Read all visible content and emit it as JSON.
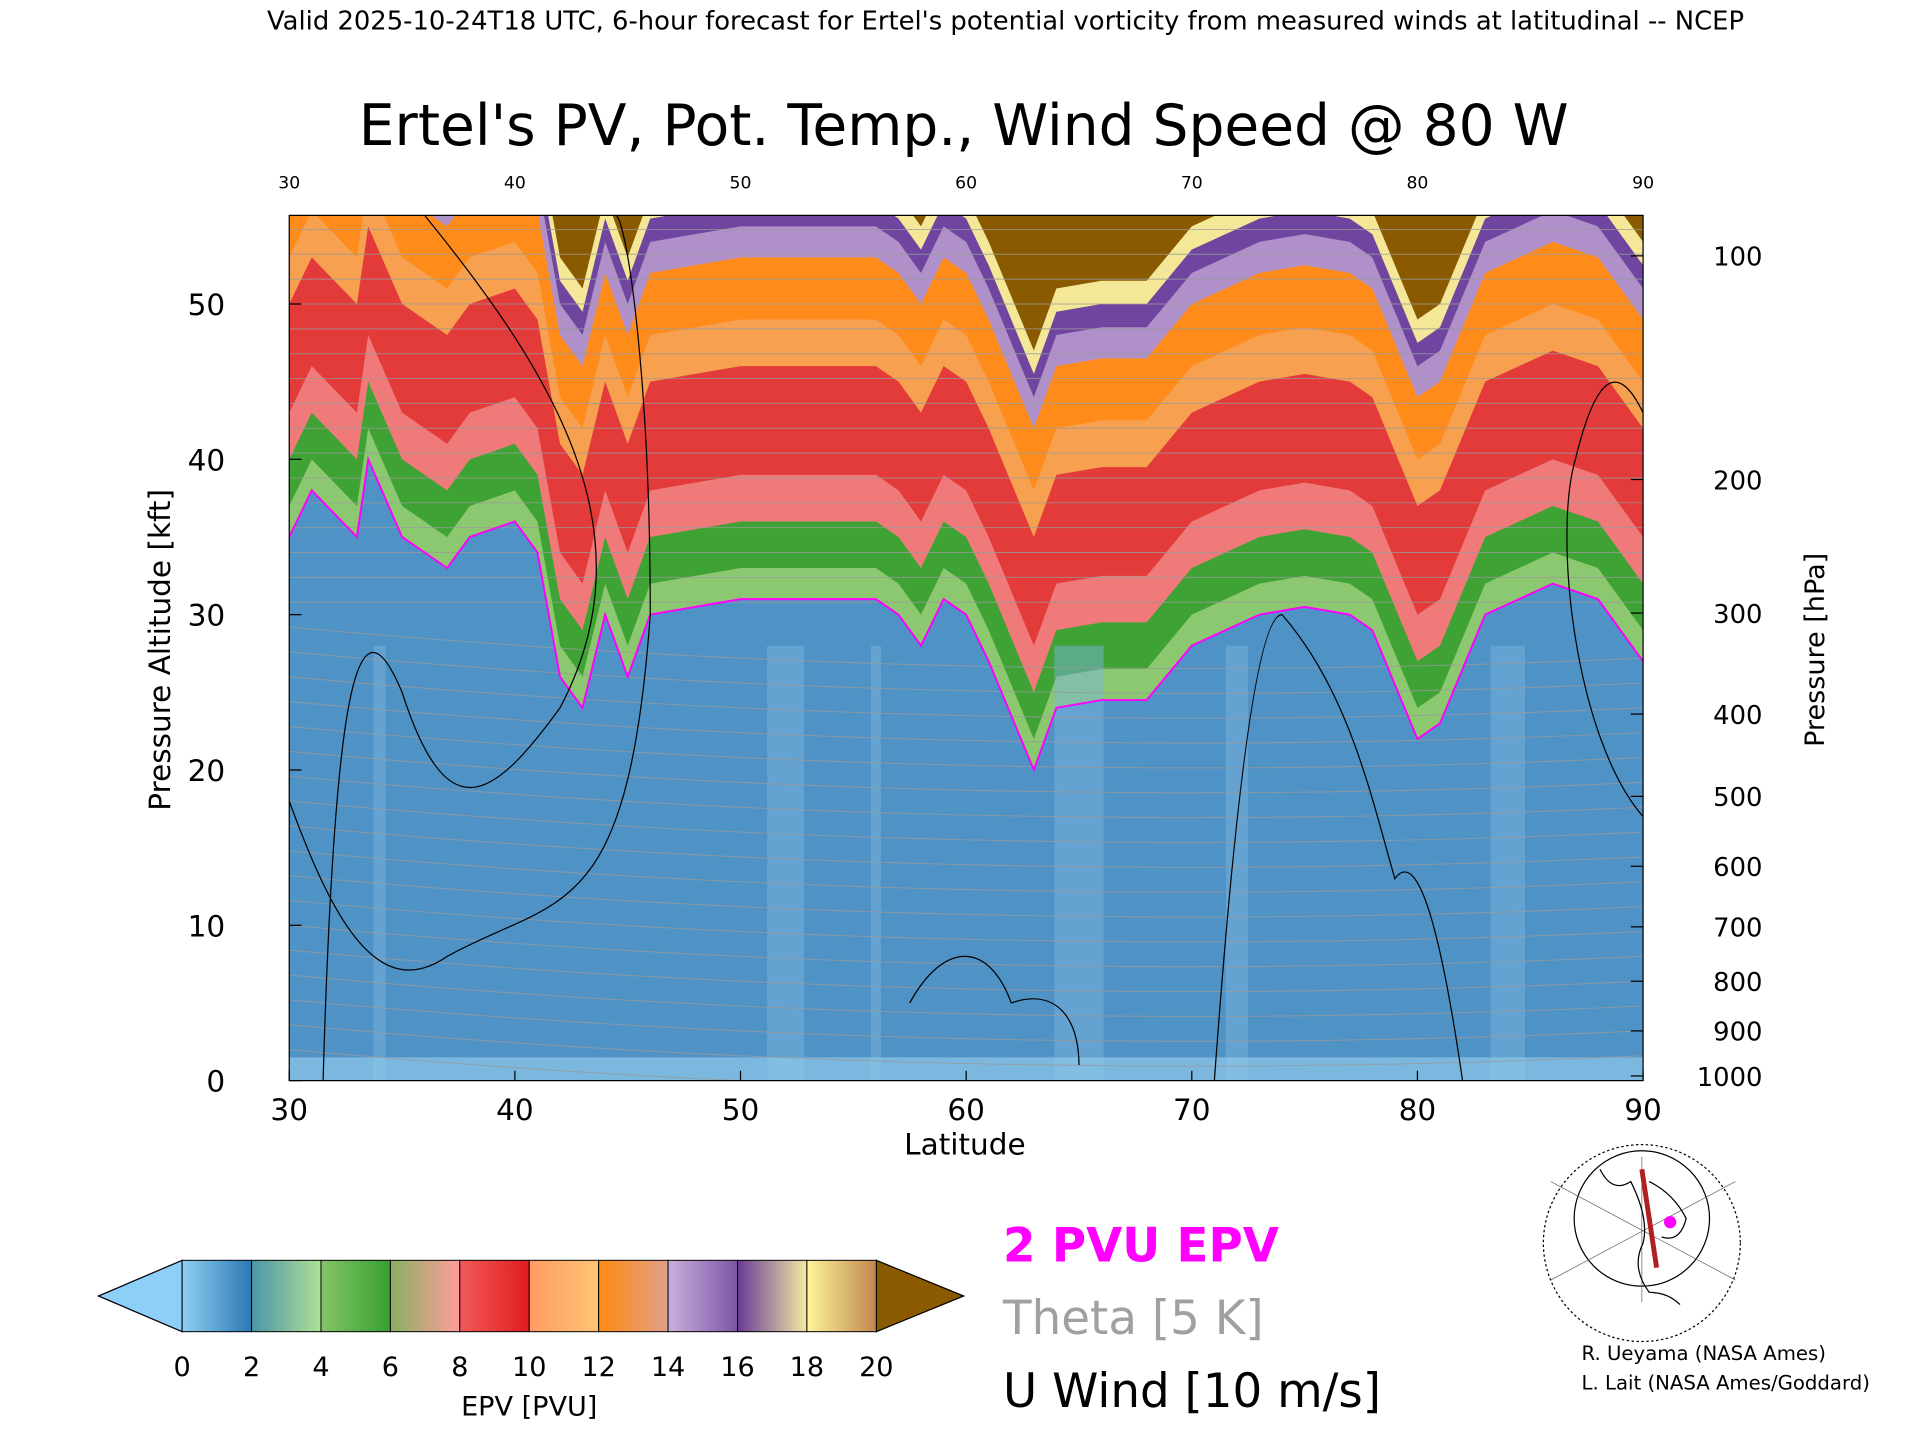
{
  "header": {
    "valid_line": "Valid 2025-10-24T18 UTC, 6-hour forecast for Ertel's potential vorticity from measured winds at latitudinal -- NCEP"
  },
  "chart_data": {
    "type": "heatmap",
    "title": "Ertel's PV, Pot. Temp., Wind Speed @ 80 W",
    "xlabel": "Latitude",
    "ylabel": "Pressure Altitude [kft]",
    "y2label": "Pressure [hPa]",
    "xlim": [
      30,
      90
    ],
    "ylim": [
      0,
      56
    ],
    "x_ticks": [
      "30",
      "40",
      "50",
      "60",
      "70",
      "80",
      "90"
    ],
    "x_tick_values": [
      30,
      40,
      50,
      60,
      70,
      80,
      90
    ],
    "y_ticks": [
      "0",
      "10",
      "20",
      "30",
      "40",
      "50"
    ],
    "y_tick_values": [
      0,
      10,
      20,
      30,
      40,
      50
    ],
    "pressure_ticks": [
      {
        "label": "100",
        "kft": 53.1
      },
      {
        "label": "200",
        "kft": 38.7
      },
      {
        "label": "300",
        "kft": 30.1
      },
      {
        "label": "400",
        "kft": 23.6
      },
      {
        "label": "500",
        "kft": 18.3
      },
      {
        "label": "600",
        "kft": 13.8
      },
      {
        "label": "700",
        "kft": 9.9
      },
      {
        "label": "800",
        "kft": 6.4
      },
      {
        "label": "900",
        "kft": 3.2
      },
      {
        "label": "1000",
        "kft": 0.3
      }
    ],
    "tropopause_2pvu": {
      "lat": [
        30,
        31,
        33,
        33.5,
        35,
        37,
        38,
        40,
        41,
        42,
        43,
        44,
        45,
        46,
        50,
        55,
        56,
        57,
        58,
        59,
        60,
        61,
        63,
        64,
        66,
        68,
        70,
        73,
        75,
        77,
        78,
        80,
        81,
        83,
        86,
        88,
        90
      ],
      "kft": [
        35,
        38,
        35,
        40,
        35,
        33,
        35,
        36,
        34,
        26,
        24,
        30,
        26,
        30,
        31,
        31,
        31,
        30,
        28,
        31,
        30,
        27,
        20,
        24,
        24.5,
        24.5,
        28,
        30,
        30.5,
        30,
        29,
        22,
        23,
        30,
        32,
        31,
        27
      ]
    },
    "colorbar": {
      "label": "EPV [PVU]",
      "ticks": [
        "0",
        "2",
        "4",
        "6",
        "8",
        "10",
        "12",
        "14",
        "16",
        "18",
        "20"
      ],
      "segments": [
        [
          "#8fd0f2",
          "#2b78b4"
        ],
        [
          "#4c95a8",
          "#aee096"
        ],
        [
          "#86c46a",
          "#37a02f"
        ],
        [
          "#8ab062",
          "#ff9c9c"
        ],
        [
          "#f25a5a",
          "#e01d1d"
        ],
        [
          "#ff9a64",
          "#ffc674"
        ],
        [
          "#ff8a12",
          "#e0a088"
        ],
        [
          "#c8b0dc",
          "#7c56a6"
        ],
        [
          "#6a3a98",
          "#f2eaa2"
        ],
        [
          "#fff49a",
          "#c08650"
        ]
      ],
      "under": "#8ecff8",
      "over": "#8a5a00"
    },
    "legend": {
      "pvu": "2 PVU EPV",
      "theta": "Theta [5 K]",
      "wind": "U Wind [10 m/s]"
    },
    "colors": {
      "pvu": "#ff00ff",
      "theta": "#a0a0a0",
      "wind": "#000000"
    }
  },
  "credits": [
    "R. Ueyama (NASA Ames)",
    "L. Lait (NASA Ames/Goddard)"
  ]
}
